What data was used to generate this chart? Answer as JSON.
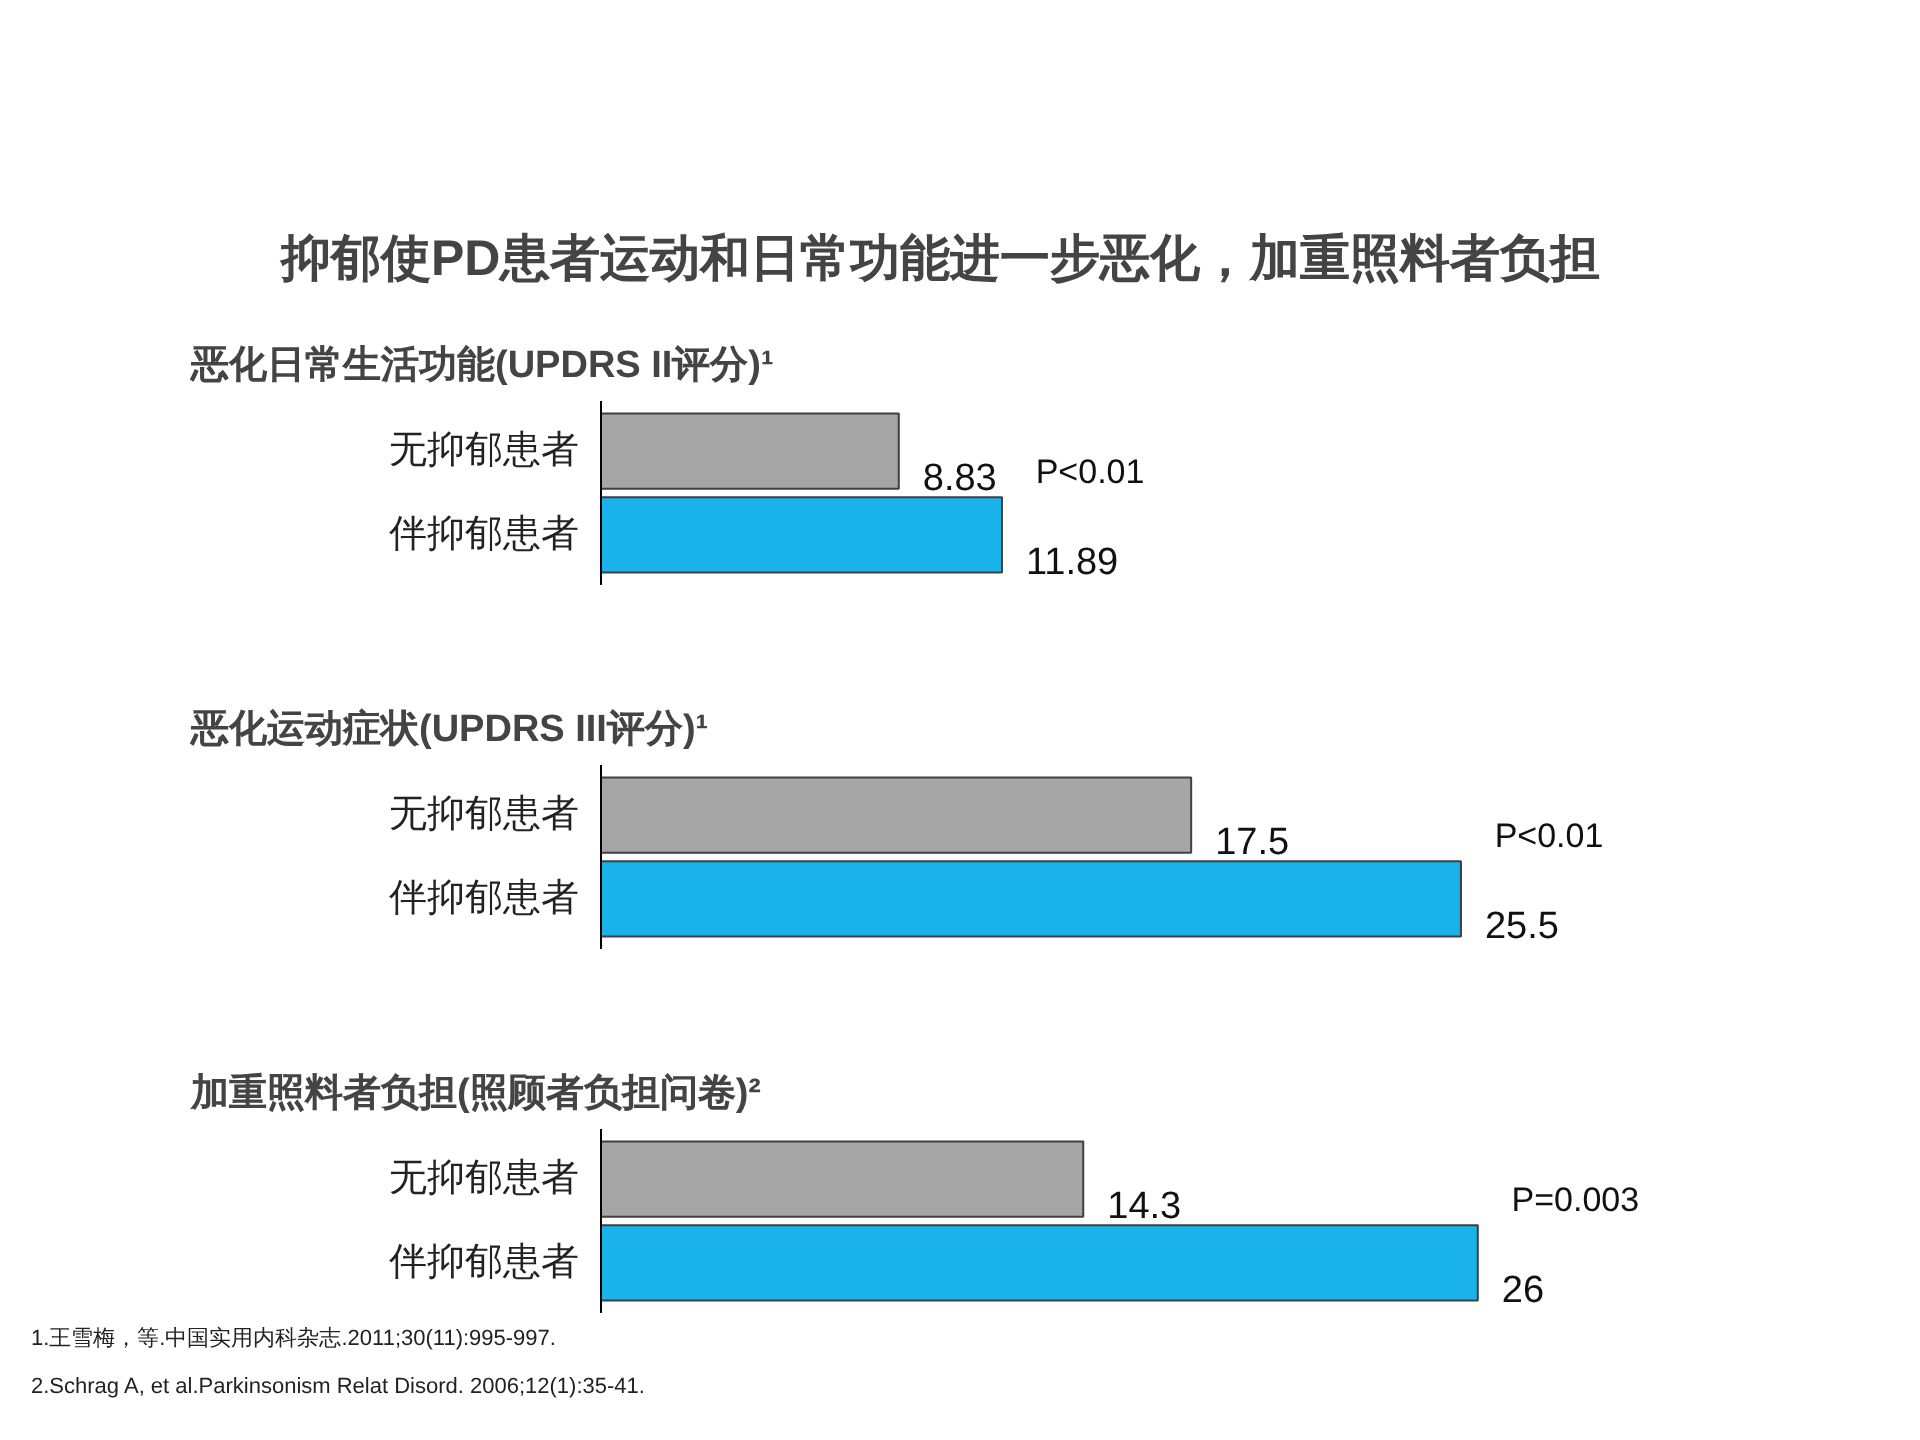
{
  "chart_data": [
    {
      "type": "bar",
      "orientation": "horizontal",
      "title": "抑郁使PD患者运动和日常功能进一步恶化，加重照料者负担",
      "subtitle": "恶化日常生活功能(UPDRS II评分)¹",
      "categories": [
        "无抑郁患者",
        "伴抑郁患者"
      ],
      "values": [
        8.83,
        11.89
      ],
      "colors": [
        "#a6a6a6",
        "#19b2ea"
      ],
      "data_labels": true,
      "tick_labels": "y",
      "grid": false,
      "annotations": [
        "P<0.01"
      ]
    },
    {
      "type": "bar",
      "orientation": "horizontal",
      "subtitle": "恶化运动症状(UPDRS  III评分)¹",
      "categories": [
        "无抑郁患者",
        "伴抑郁患者"
      ],
      "values": [
        17.5,
        25.5
      ],
      "colors": [
        "#a6a6a6",
        "#19b2ea"
      ],
      "data_labels": true,
      "tick_labels": "y",
      "grid": false,
      "annotations": [
        "P<0.01"
      ]
    },
    {
      "type": "bar",
      "orientation": "horizontal",
      "subtitle": "加重照料者负担(照顾者负担问卷)²",
      "categories": [
        "无抑郁患者",
        "伴抑郁患者"
      ],
      "values": [
        14.3,
        26
      ],
      "colors": [
        "#a6a6a6",
        "#19b2ea"
      ],
      "data_labels": true,
      "tick_labels": "y",
      "grid": false,
      "annotations": [
        "P=0.003",
        "1.王雪梅，等.中国实用内科杂志.2011;30(11):995-997.",
        "2.Schrag A, et al.Parkinsonism Relat Disord. 2006;12(1):35-41."
      ]
    }
  ]
}
